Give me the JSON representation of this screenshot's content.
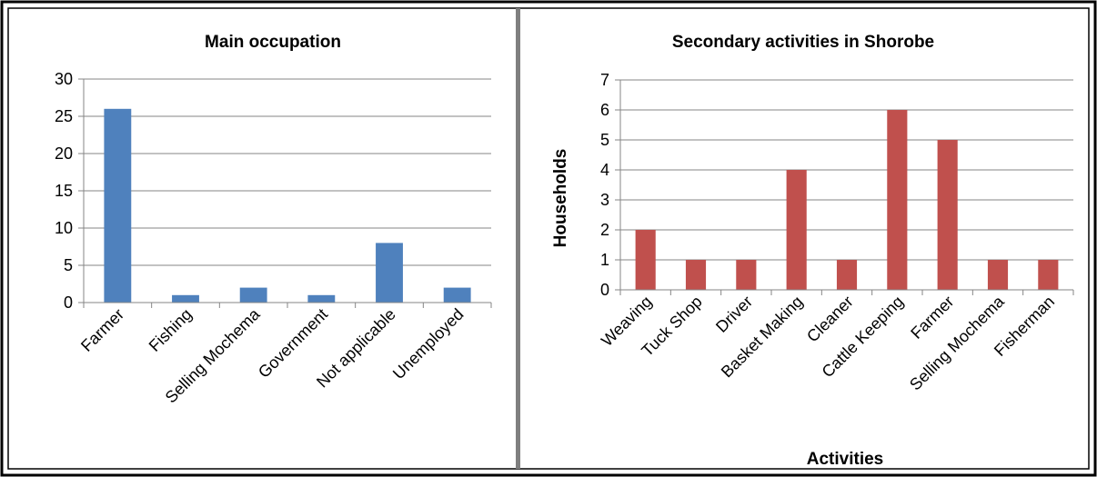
{
  "chart_data": [
    {
      "type": "bar",
      "title": "Main occupation",
      "xlabel": "",
      "ylabel": "",
      "categories": [
        "Farmer",
        "Fishing",
        "Selling Mochema",
        "Government",
        "Not applicable",
        "Unemployed"
      ],
      "values": [
        26,
        1,
        2,
        1,
        8,
        2
      ],
      "ylim": [
        0,
        30
      ],
      "yticks": [
        0,
        5,
        10,
        15,
        20,
        25,
        30
      ],
      "color": "#4f81bd",
      "grid": true
    },
    {
      "type": "bar",
      "title": "Secondary activities in Shorobe",
      "xlabel": "Activities",
      "ylabel": "Households",
      "categories": [
        "Weaving",
        "Tuck Shop",
        "Driver",
        "Basket Making",
        "Cleaner",
        "Cattle Keeping",
        "Farmer",
        "Selling Mochema",
        "Fisherman"
      ],
      "values": [
        2,
        1,
        1,
        4,
        1,
        6,
        5,
        1,
        1
      ],
      "ylim": [
        0,
        7
      ],
      "yticks": [
        0,
        1,
        2,
        3,
        4,
        5,
        6,
        7
      ],
      "color": "#c0504d",
      "grid": true
    }
  ]
}
